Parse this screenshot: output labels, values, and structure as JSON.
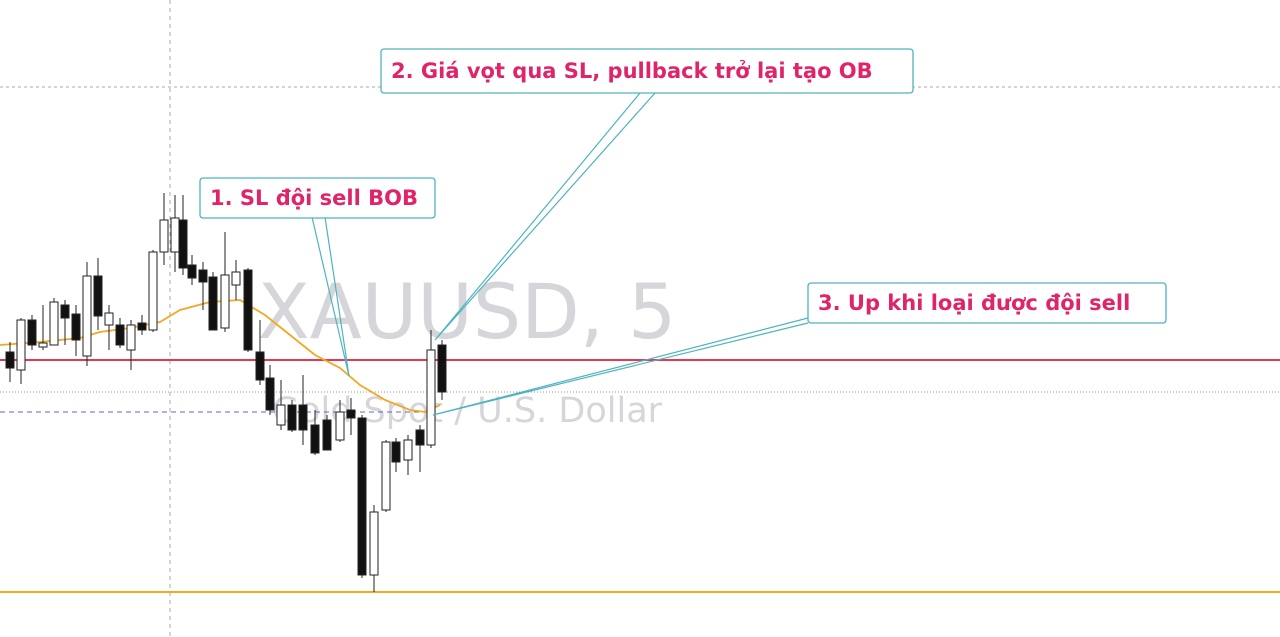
{
  "watermark": {
    "symbol": "XAUUSD, 5",
    "description": "Gold Spot / U.S. Dollar"
  },
  "annotations": [
    {
      "text": "1. SL đội sell BOB"
    },
    {
      "text": "2. Giá vọt qua SL, pullback trở lại tạo OB"
    },
    {
      "text": "3. Up khi loại được đội sell"
    }
  ]
}
